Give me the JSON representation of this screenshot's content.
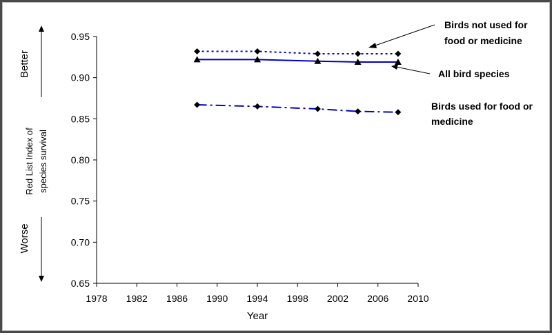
{
  "chart_data": {
    "type": "line",
    "title": "",
    "xlabel": "Year",
    "ylabel_lines": [
      "Red List Index of",
      "species survival"
    ],
    "direction_labels": {
      "top": "Better",
      "bottom": "Worse"
    },
    "xlim": [
      1978,
      2010
    ],
    "ylim": [
      0.65,
      0.95
    ],
    "xticks": [
      "1978",
      "1982",
      "1986",
      "1990",
      "1994",
      "1998",
      "2002",
      "2006",
      "2010"
    ],
    "yticks": [
      "0.95",
      "0.90",
      "0.85",
      "0.80",
      "0.75",
      "0.70",
      "0.65"
    ],
    "grid": false,
    "series": [
      {
        "key": "not_used",
        "name_lines": [
          "Birds not used for",
          "food or medicine"
        ],
        "x": [
          1988,
          1994,
          2000,
          2004,
          2008
        ],
        "y": [
          0.932,
          0.932,
          0.929,
          0.929,
          0.929
        ],
        "color": "#0000cc",
        "marker": "diamond",
        "line_style": "dotted"
      },
      {
        "key": "all",
        "name_lines": [
          "All bird species"
        ],
        "x": [
          1988,
          1994,
          2000,
          2004,
          2008
        ],
        "y": [
          0.922,
          0.922,
          0.92,
          0.919,
          0.919
        ],
        "color": "#0000cc",
        "marker": "triangle",
        "line_style": "solid"
      },
      {
        "key": "used",
        "name_lines": [
          "Birds used for food or",
          "medicine"
        ],
        "x": [
          1988,
          1994,
          2000,
          2004,
          2008
        ],
        "y": [
          0.867,
          0.865,
          0.862,
          0.859,
          0.858
        ],
        "color": "#0000cc",
        "marker": "diamond",
        "line_style": "dash-dot"
      }
    ]
  }
}
